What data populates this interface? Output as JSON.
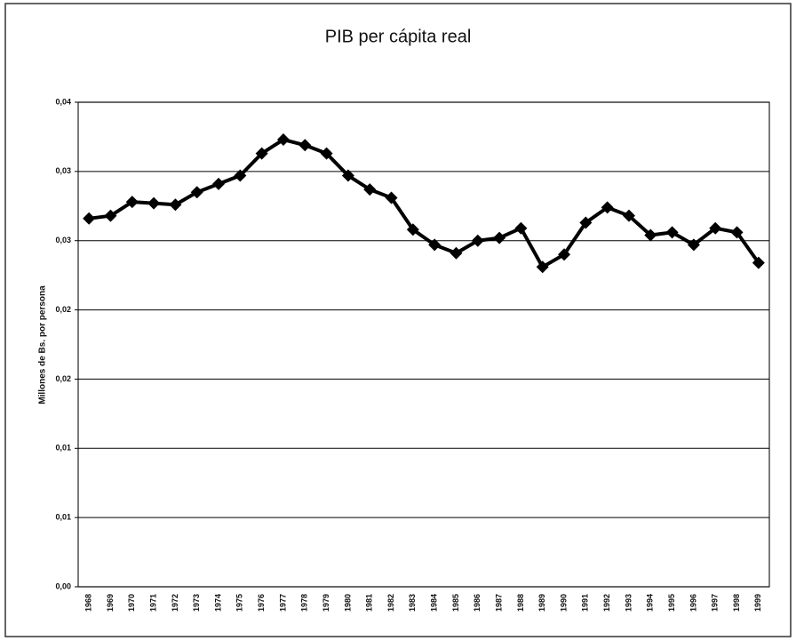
{
  "chart_data": {
    "type": "line",
    "title": "PIB per cápita real",
    "y_label": "Millones de Bs. por persona",
    "categories": [
      "1968",
      "1969",
      "1970",
      "1971",
      "1972",
      "1973",
      "1974",
      "1975",
      "1976",
      "1977",
      "1978",
      "1979",
      "1980",
      "1981",
      "1982",
      "1983",
      "1984",
      "1985",
      "1986",
      "1987",
      "1988",
      "1989",
      "1990",
      "1991",
      "1992",
      "1993",
      "1994",
      "1995",
      "1996",
      "1997",
      "1998",
      "1999"
    ],
    "series": [
      {
        "name": "PIB per cápita real",
        "color": "#000000",
        "values": [
          0.0266,
          0.0268,
          0.0278,
          0.0277,
          0.0276,
          0.0285,
          0.0291,
          0.0297,
          0.0313,
          0.0323,
          0.0319,
          0.0313,
          0.0297,
          0.0287,
          0.0281,
          0.0258,
          0.0247,
          0.0241,
          0.025,
          0.0252,
          0.0259,
          0.0231,
          0.024,
          0.0263,
          0.0274,
          0.0268,
          0.0254,
          0.0256,
          0.0247,
          0.0259,
          0.0256,
          0.0234
        ]
      }
    ],
    "ylim": [
      0,
      0.035
    ],
    "yticks": [
      {
        "value": 0,
        "label": "0,00"
      },
      {
        "value": 0.005,
        "label": "0,01"
      },
      {
        "value": 0.01,
        "label": "0,01"
      },
      {
        "value": 0.015,
        "label": "0,02"
      },
      {
        "value": 0.02,
        "label": "0,02"
      },
      {
        "value": 0.025,
        "label": "0,03"
      },
      {
        "value": 0.03,
        "label": "0,03"
      },
      {
        "value": 0.035,
        "label": "0,04"
      }
    ],
    "grid": true
  }
}
